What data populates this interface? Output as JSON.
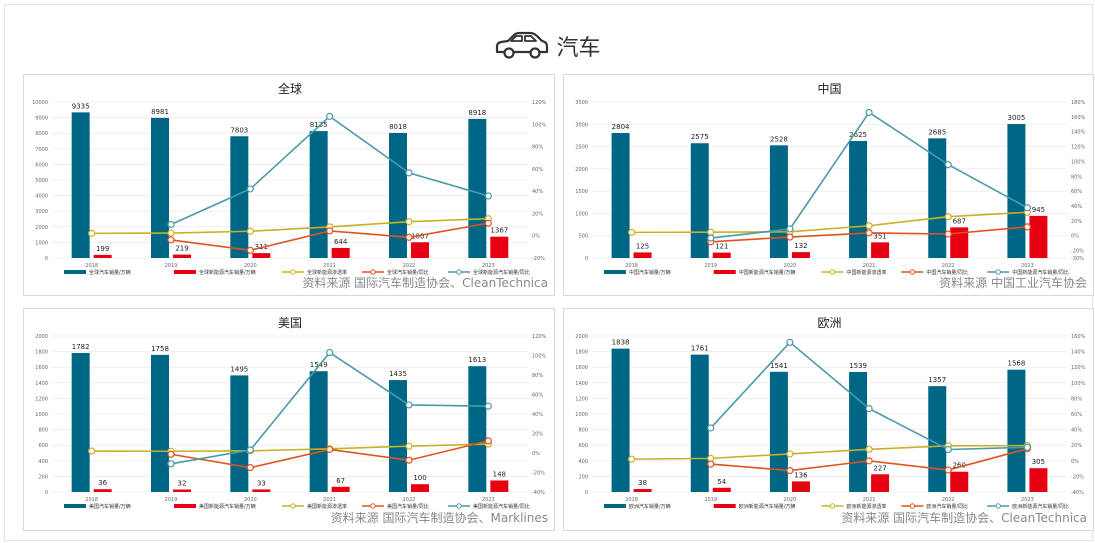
{
  "header": {
    "title": "汽车",
    "icon": "car-icon"
  },
  "colors": {
    "total_bar": "#006686",
    "ev_bar": "#e60012",
    "penetration_line": "#c8b026",
    "total_yoy_line": "#e0531f",
    "ev_yoy_line": "#4a9aaa",
    "grid": "#e6e6e6",
    "axis_text": "#666666"
  },
  "legend_labels": {
    "global": [
      "全球汽车销量/万辆",
      "全球新能源汽车销量/万辆",
      "全球新能源渗透率",
      "全球汽车销量/同比",
      "全球新能源汽车销量/同比"
    ],
    "china": [
      "中国汽车销量/万辆",
      "中国新能源汽车销量/万辆",
      "中国新能源渗透率",
      "中国汽车销量/同比",
      "中国新能源汽车销量/同比"
    ],
    "us": [
      "美国汽车销量/万辆",
      "美国新能源汽车销量/万辆",
      "美国新能源渗透率",
      "美国汽车销量/同比",
      "美国新能源汽车销量/同比"
    ],
    "europe": [
      "欧洲汽车销量/万辆",
      "欧洲新能源汽车销量/万辆",
      "欧洲新能源渗透率",
      "欧洲汽车销量/同比",
      "欧洲新能源汽车销量/同比"
    ]
  },
  "chart_data": [
    {
      "id": "global",
      "type": "bar",
      "title": "全球",
      "source": "资料来源  国际汽车制造协会、CleanTechnica",
      "categories": [
        "2018",
        "2019",
        "2020",
        "2021",
        "2022",
        "2023"
      ],
      "ylim_left": [
        0,
        10000
      ],
      "left_ticks": [
        0,
        1000,
        2000,
        3000,
        4000,
        5000,
        6000,
        7000,
        8000,
        9000,
        10000
      ],
      "ylim_right": [
        -20,
        120
      ],
      "right_ticks": [
        -20,
        0,
        20,
        40,
        60,
        80,
        100,
        120
      ],
      "bar_series": [
        {
          "values": [
            9335,
            8981,
            7803,
            8135,
            8018,
            8918
          ]
        },
        {
          "values": [
            199,
            219,
            311,
            644,
            1007,
            1367
          ]
        }
      ],
      "line_series": [
        {
          "values": [
            2.1,
            2.4,
            4.0,
            7.9,
            12.6,
            15.3
          ]
        },
        {
          "values": [
            null,
            -3.8,
            -13.1,
            4.3,
            -1.4,
            11.2
          ]
        },
        {
          "values": [
            null,
            10.1,
            42.0,
            107.1,
            56.4,
            35.7
          ]
        }
      ]
    },
    {
      "id": "china",
      "type": "bar",
      "title": "中国",
      "source": "资料来源  中国工业汽车协会",
      "categories": [
        "2018",
        "2019",
        "2020",
        "2021",
        "2022",
        "2023"
      ],
      "ylim_left": [
        0,
        3500
      ],
      "left_ticks": [
        0,
        500,
        1000,
        1500,
        2000,
        2500,
        3000,
        3500
      ],
      "ylim_right": [
        -30,
        180
      ],
      "right_ticks": [
        -30,
        -20,
        0,
        20,
        40,
        60,
        80,
        100,
        120,
        140,
        160,
        180
      ],
      "bar_series": [
        {
          "values": [
            2804,
            2575,
            2528,
            2625,
            2685,
            3005
          ]
        },
        {
          "values": [
            125,
            121,
            132,
            351,
            687,
            945
          ]
        }
      ],
      "line_series": [
        {
          "values": [
            4.5,
            4.7,
            5.2,
            13.4,
            25.6,
            31.6
          ]
        },
        {
          "values": [
            null,
            -8.2,
            -1.8,
            3.8,
            2.3,
            11.9
          ]
        },
        {
          "values": [
            null,
            -3.2,
            9.1,
            165.9,
            95.7,
            37.6
          ]
        }
      ]
    },
    {
      "id": "us",
      "type": "bar",
      "title": "美国",
      "source": "资料来源  国际汽车制造协会、Marklines",
      "categories": [
        "2018",
        "2019",
        "2020",
        "2021",
        "2022",
        "2023"
      ],
      "ylim_left": [
        0,
        2000
      ],
      "left_ticks": [
        0,
        200,
        400,
        600,
        800,
        1000,
        1200,
        1400,
        1600,
        1800,
        2000
      ],
      "ylim_right": [
        -40,
        120
      ],
      "right_ticks": [
        -40,
        -20,
        0,
        20,
        40,
        60,
        80,
        100,
        120
      ],
      "bar_series": [
        {
          "values": [
            1782,
            1758,
            1495,
            1549,
            1435,
            1613
          ]
        },
        {
          "values": [
            36,
            32,
            33,
            67,
            100,
            148
          ]
        }
      ],
      "line_series": [
        {
          "values": [
            2.0,
            1.8,
            2.2,
            4.3,
            7.0,
            9.2
          ]
        },
        {
          "values": [
            null,
            -1.3,
            -15.0,
            3.6,
            -7.4,
            12.4
          ]
        },
        {
          "values": [
            null,
            -11.1,
            3.1,
            103.0,
            49.3,
            48.0
          ]
        }
      ]
    },
    {
      "id": "europe",
      "type": "bar",
      "title": "欧洲",
      "source": "资料来源  国际汽车制造协会、CleanTechnica",
      "categories": [
        "2018",
        "2019",
        "2020",
        "2021",
        "2022",
        "2023"
      ],
      "ylim_left": [
        0,
        2000
      ],
      "left_ticks": [
        0,
        200,
        400,
        600,
        800,
        1000,
        1200,
        1400,
        1600,
        1800,
        2000
      ],
      "ylim_right": [
        -40,
        160
      ],
      "right_ticks": [
        -40,
        -20,
        0,
        20,
        40,
        60,
        80,
        100,
        120,
        140,
        160
      ],
      "bar_series": [
        {
          "values": [
            1838,
            1761,
            1541,
            1539,
            1357,
            1568
          ]
        },
        {
          "values": [
            38,
            54,
            136,
            227,
            260,
            305
          ]
        }
      ],
      "line_series": [
        {
          "values": [
            2.1,
            3.1,
            8.8,
            14.7,
            19.2,
            19.5
          ]
        },
        {
          "values": [
            null,
            -4.2,
            -12.5,
            -0.1,
            -11.8,
            15.5
          ]
        },
        {
          "values": [
            null,
            42.1,
            151.9,
            66.9,
            14.5,
            17.3
          ]
        }
      ]
    }
  ]
}
